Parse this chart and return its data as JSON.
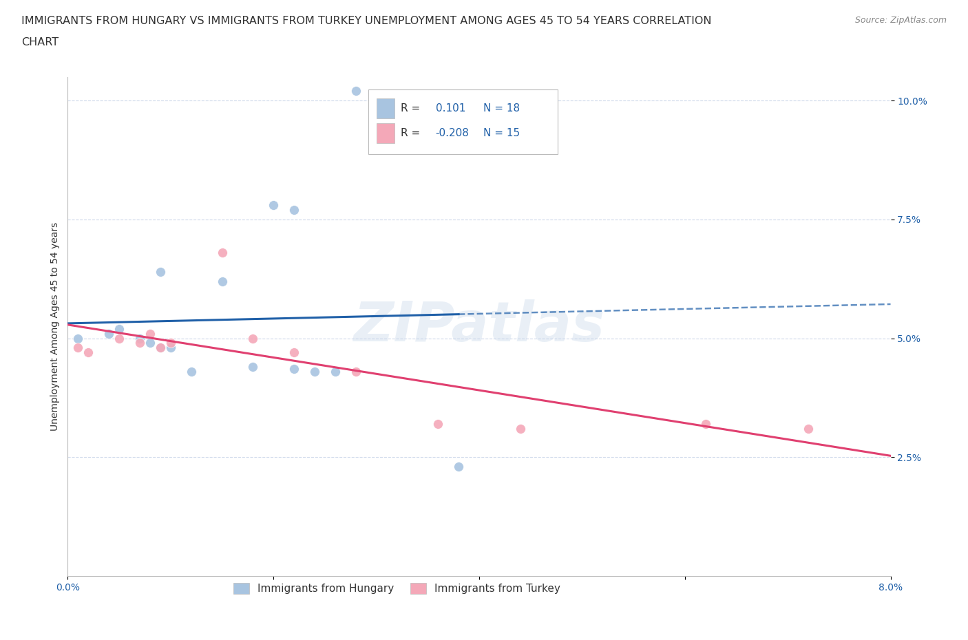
{
  "title_line1": "IMMIGRANTS FROM HUNGARY VS IMMIGRANTS FROM TURKEY UNEMPLOYMENT AMONG AGES 45 TO 54 YEARS CORRELATION",
  "title_line2": "CHART",
  "source_text": "Source: ZipAtlas.com",
  "ylabel": "Unemployment Among Ages 45 to 54 years",
  "xlim": [
    0.0,
    0.08
  ],
  "ylim": [
    0.0,
    0.105
  ],
  "xticks": [
    0.0,
    0.02,
    0.04,
    0.06,
    0.08
  ],
  "xticklabels": [
    "0.0%",
    "",
    "",
    "",
    "8.0%"
  ],
  "yticks": [
    0.025,
    0.05,
    0.075,
    0.1
  ],
  "yticklabels": [
    "2.5%",
    "5.0%",
    "7.5%",
    "10.0%"
  ],
  "hungary_x": [
    0.001,
    0.004,
    0.005,
    0.007,
    0.008,
    0.009,
    0.009,
    0.01,
    0.012,
    0.015,
    0.018,
    0.02,
    0.022,
    0.024,
    0.026,
    0.022,
    0.038,
    0.028
  ],
  "hungary_y": [
    0.05,
    0.051,
    0.052,
    0.05,
    0.049,
    0.048,
    0.064,
    0.048,
    0.043,
    0.062,
    0.044,
    0.078,
    0.077,
    0.043,
    0.043,
    0.0435,
    0.023,
    0.102
  ],
  "turkey_x": [
    0.001,
    0.002,
    0.005,
    0.007,
    0.008,
    0.009,
    0.01,
    0.015,
    0.018,
    0.022,
    0.028,
    0.036,
    0.044,
    0.062,
    0.072
  ],
  "turkey_y": [
    0.048,
    0.047,
    0.05,
    0.049,
    0.051,
    0.048,
    0.049,
    0.068,
    0.05,
    0.047,
    0.043,
    0.032,
    0.031,
    0.032,
    0.031
  ],
  "hungary_color": "#a8c4e0",
  "turkey_color": "#f4a8b8",
  "hungary_line_color": "#2060a8",
  "turkey_line_color": "#e04070",
  "hungary_R": 0.101,
  "hungary_N": 18,
  "turkey_R": -0.208,
  "turkey_N": 15,
  "legend_hungary_label": "Immigrants from Hungary",
  "legend_turkey_label": "Immigrants from Turkey",
  "background_color": "#ffffff",
  "grid_color": "#c8d4e8",
  "marker_size": 100,
  "font_color_blue": "#2060a8",
  "font_color_dark": "#333333",
  "font_color_grey": "#888888",
  "title_fontsize": 11.5,
  "axis_label_fontsize": 10,
  "tick_fontsize": 10,
  "legend_fontsize": 11
}
